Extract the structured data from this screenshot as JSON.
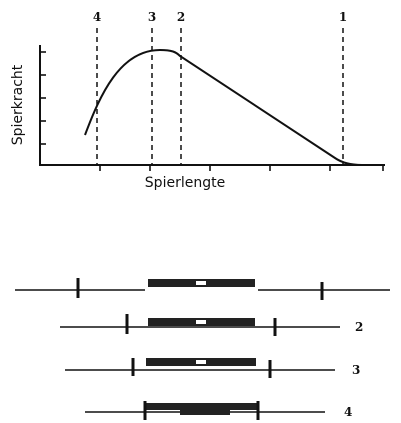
{
  "graph": {
    "y_label": "Spierkracht",
    "x_label": "Spierlengte",
    "markers": [
      "4",
      "3",
      "2",
      "1"
    ]
  },
  "sarcomere_labels": [
    "2",
    "3",
    "4"
  ]
}
